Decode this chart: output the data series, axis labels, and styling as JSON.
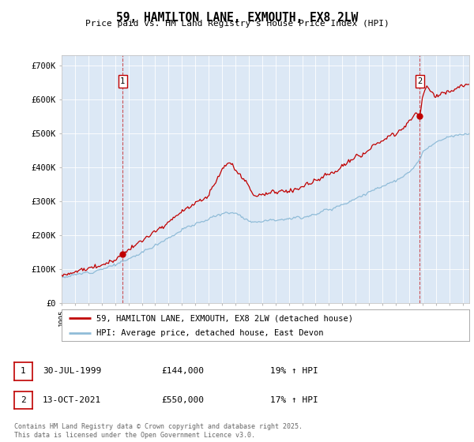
{
  "title": "59, HAMILTON LANE, EXMOUTH, EX8 2LW",
  "subtitle": "Price paid vs. HM Land Registry's House Price Index (HPI)",
  "ylabel_ticks": [
    "£0",
    "£100K",
    "£200K",
    "£300K",
    "£400K",
    "£500K",
    "£600K",
    "£700K"
  ],
  "ytick_values": [
    0,
    100000,
    200000,
    300000,
    400000,
    500000,
    600000,
    700000
  ],
  "ylim": [
    0,
    730000
  ],
  "xlim_start": 1995.3,
  "xlim_end": 2025.5,
  "line1_color": "#c00000",
  "line2_color": "#90bcd8",
  "sale1_date": 1999.57,
  "sale1_price": 144000,
  "sale2_date": 2021.79,
  "sale2_price": 550000,
  "legend_line1": "59, HAMILTON LANE, EXMOUTH, EX8 2LW (detached house)",
  "legend_line2": "HPI: Average price, detached house, East Devon",
  "annotation1_label": "1",
  "annotation1_date": "30-JUL-1999",
  "annotation1_price": "£144,000",
  "annotation1_hpi": "19% ↑ HPI",
  "annotation2_label": "2",
  "annotation2_date": "13-OCT-2021",
  "annotation2_price": "£550,000",
  "annotation2_hpi": "17% ↑ HPI",
  "footer": "Contains HM Land Registry data © Crown copyright and database right 2025.\nThis data is licensed under the Open Government Licence v3.0.",
  "plot_bg_color": "#dce8f5",
  "fig_bg_color": "#ffffff"
}
